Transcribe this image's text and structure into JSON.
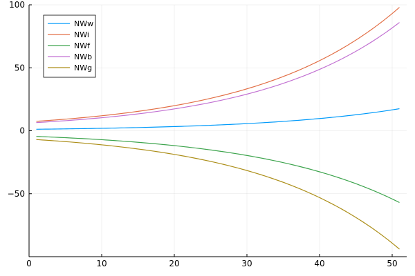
{
  "chart_data": {
    "type": "line",
    "title": "",
    "xlabel": "",
    "ylabel": "",
    "xlim": [
      0,
      52
    ],
    "ylim": [
      -100,
      100
    ],
    "grid": true,
    "legend_position": "top-left",
    "x_ticks": [
      0,
      10,
      20,
      30,
      40,
      50
    ],
    "x_tick_labels": [
      "0",
      "10",
      "20",
      "30",
      "40",
      "50"
    ],
    "y_ticks": [
      100,
      50,
      0,
      -50
    ],
    "y_tick_labels": [
      "100",
      "50",
      "0",
      "−50"
    ],
    "series": [
      {
        "name": "NWw",
        "color": "#009AFA",
        "start": [
          1,
          1.2
        ],
        "end": [
          51,
          17.5
        ]
      },
      {
        "name": "NWi",
        "color": "#E26F46",
        "start": [
          1,
          7.5
        ],
        "end": [
          51,
          98
        ]
      },
      {
        "name": "NWf",
        "color": "#3DA44D",
        "start": [
          1,
          -4.5
        ],
        "end": [
          51,
          -57
        ]
      },
      {
        "name": "NWb",
        "color": "#C271D2",
        "start": [
          1,
          6.5
        ],
        "end": [
          51,
          86
        ]
      },
      {
        "name": "NWg",
        "color": "#AC8E18",
        "start": [
          1,
          -7
        ],
        "end": [
          51,
          -94
        ]
      }
    ]
  }
}
